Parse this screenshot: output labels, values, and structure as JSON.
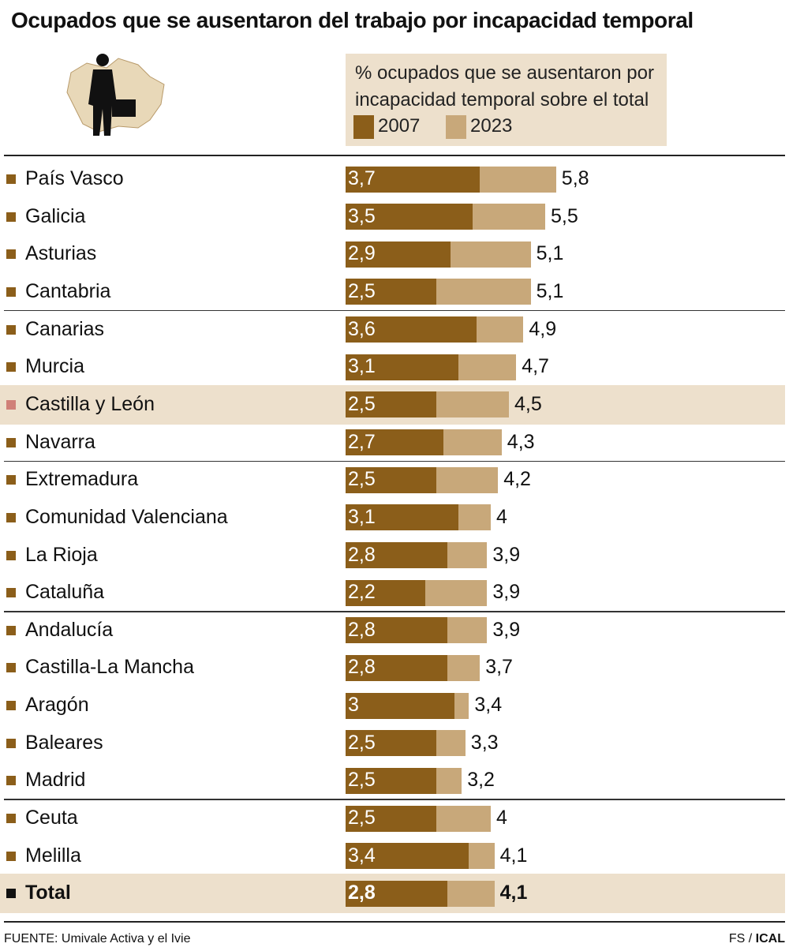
{
  "chart_data": {
    "type": "overlap-bar",
    "title": "Ocupados que se ausentaron del trabajo por incapacidad temporal",
    "legend_title": "% ocupados que se ausentaron por incapacidad temporal sobre el total",
    "categories": [
      "País Vasco",
      "Galicia",
      "Asturias",
      "Cantabria",
      "Canarias",
      "Murcia",
      "Castilla y León",
      "Navarra",
      "Extremadura",
      "Comunidad Valenciana",
      "La Rioja",
      "Cataluña",
      "Andalucía",
      "Castilla-La Mancha",
      "Aragón",
      "Baleares",
      "Madrid",
      "Ceuta",
      "Melilla",
      "Total"
    ],
    "series": [
      {
        "name": "2007",
        "color": "#8b5e1a",
        "values": [
          3.7,
          3.5,
          2.9,
          2.5,
          3.6,
          3.1,
          2.5,
          2.7,
          2.5,
          3.1,
          2.8,
          2.2,
          2.8,
          2.8,
          3,
          2.5,
          2.5,
          2.5,
          3.4,
          2.8
        ],
        "value_labels": [
          "3,7",
          "3,5",
          "2,9",
          "2,5",
          "3,6",
          "3,1",
          "2,5",
          "2,7",
          "2,5",
          "3,1",
          "2,8",
          "2,2",
          "2,8",
          "2,8",
          "3",
          "2,5",
          "2,5",
          "2,5",
          "3,4",
          "2,8"
        ]
      },
      {
        "name": "2023",
        "color": "#c8a87a",
        "values": [
          5.8,
          5.5,
          5.1,
          5.1,
          4.9,
          4.7,
          4.5,
          4.3,
          4.2,
          4,
          3.9,
          3.9,
          3.9,
          3.7,
          3.4,
          3.3,
          3.2,
          4,
          4.1,
          4.1
        ],
        "value_labels": [
          "5,8",
          "5,5",
          "5,1",
          "5,1",
          "4,9",
          "4,7",
          "4,5",
          "4,3",
          "4,2",
          "4",
          "3,9",
          "3,9",
          "3,9",
          "3,7",
          "3,4",
          "3,3",
          "3,2",
          "4",
          "4,1",
          "4,1"
        ]
      }
    ],
    "xlim": [
      0,
      12
    ],
    "highlight": [
      6
    ],
    "total_row": [
      19
    ],
    "source": "FUENTE: Umivale Activa y el Ivie",
    "credit_author": "FS /",
    "credit_agency": "ICAL"
  }
}
